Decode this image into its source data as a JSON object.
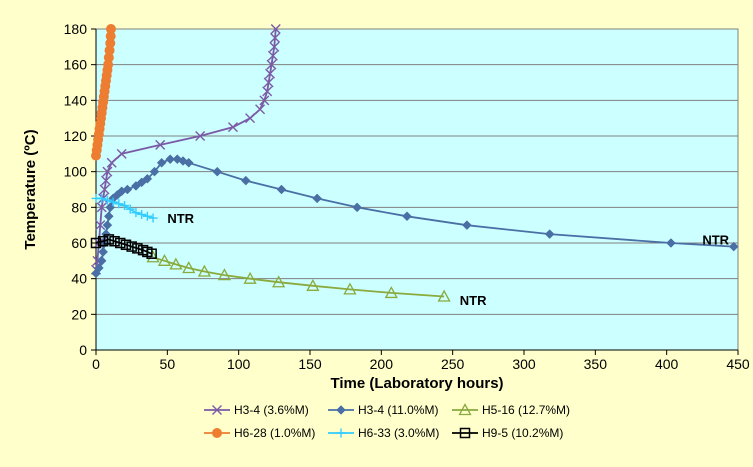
{
  "chart_data": {
    "type": "line",
    "title": "",
    "xlabel": "Time (Laboratory hours)",
    "ylabel": "Temperature (ºC)",
    "xlim": [
      0,
      450
    ],
    "ylim": [
      0,
      180
    ],
    "x_ticks": [
      0,
      50,
      100,
      150,
      200,
      250,
      300,
      350,
      400,
      450
    ],
    "y_ticks": [
      0,
      20,
      40,
      60,
      80,
      100,
      120,
      140,
      160,
      180
    ],
    "grid": "horizontal",
    "plot_background": "#CCFFFF",
    "page_background": "#FFFFCC",
    "legend_position": "bottom",
    "series": [
      {
        "name": "H3-4 (3.6%M)",
        "color": "#7B5AA6",
        "marker": "x",
        "points": [
          [
            0,
            45
          ],
          [
            1,
            50
          ],
          [
            2,
            60
          ],
          [
            3,
            70
          ],
          [
            4,
            80
          ],
          [
            5,
            85
          ],
          [
            6,
            90
          ],
          [
            7,
            95
          ],
          [
            8,
            100
          ],
          [
            11,
            105
          ],
          [
            18,
            110
          ],
          [
            45,
            115
          ],
          [
            73,
            120
          ],
          [
            96,
            125
          ],
          [
            108,
            130
          ],
          [
            115,
            135
          ],
          [
            118,
            140
          ],
          [
            120,
            145
          ],
          [
            121,
            150
          ],
          [
            122,
            155
          ],
          [
            123,
            160
          ],
          [
            124,
            165
          ],
          [
            125,
            170
          ],
          [
            125.5,
            175
          ],
          [
            126,
            180
          ]
        ]
      },
      {
        "name": "H3-4 (11.0%M)",
        "color": "#4A6FA5",
        "marker": "diamond",
        "points": [
          [
            0,
            43
          ],
          [
            2,
            46
          ],
          [
            4,
            50
          ],
          [
            5,
            55
          ],
          [
            6,
            60
          ],
          [
            7,
            65
          ],
          [
            8,
            70
          ],
          [
            9,
            75
          ],
          [
            10,
            80
          ],
          [
            12,
            85
          ],
          [
            15,
            87
          ],
          [
            18,
            89
          ],
          [
            22,
            90
          ],
          [
            28,
            92
          ],
          [
            32,
            94
          ],
          [
            36,
            96
          ],
          [
            41,
            100
          ],
          [
            46,
            105
          ],
          [
            52,
            107
          ],
          [
            57,
            107
          ],
          [
            61,
            106
          ],
          [
            65,
            105
          ],
          [
            85,
            100
          ],
          [
            105,
            95
          ],
          [
            130,
            90
          ],
          [
            155,
            85
          ],
          [
            183,
            80
          ],
          [
            218,
            75
          ],
          [
            260,
            70
          ],
          [
            318,
            65
          ],
          [
            403,
            60
          ],
          [
            447,
            58
          ]
        ]
      },
      {
        "name": "H5-16 (12.7%M)",
        "color": "#8AAA3C",
        "marker": "triangle",
        "points": [
          [
            40,
            52
          ],
          [
            48,
            50
          ],
          [
            56,
            48
          ],
          [
            65,
            46
          ],
          [
            76,
            44
          ],
          [
            90,
            42
          ],
          [
            108,
            40
          ],
          [
            128,
            38
          ],
          [
            152,
            36
          ],
          [
            178,
            34
          ],
          [
            207,
            32
          ],
          [
            244,
            30
          ]
        ]
      },
      {
        "name": "H6-28 (1.0%M)",
        "color": "#ED7D31",
        "marker": "circle",
        "points": [
          [
            0,
            109
          ],
          [
            0.5,
            112
          ],
          [
            1,
            115
          ],
          [
            1.5,
            118
          ],
          [
            2,
            121
          ],
          [
            2.5,
            124
          ],
          [
            3,
            127
          ],
          [
            3.5,
            130
          ],
          [
            4,
            133
          ],
          [
            4.5,
            136
          ],
          [
            5,
            139
          ],
          [
            5.5,
            142
          ],
          [
            6,
            145
          ],
          [
            6.5,
            148
          ],
          [
            7,
            151
          ],
          [
            7.5,
            154
          ],
          [
            8,
            157
          ],
          [
            8.5,
            160
          ],
          [
            9,
            164
          ],
          [
            9.5,
            168
          ],
          [
            10,
            172
          ],
          [
            10.3,
            176
          ],
          [
            10.5,
            180
          ]
        ]
      },
      {
        "name": "H6-33 (3.0%M)",
        "color": "#33CCFF",
        "marker": "plus",
        "points": [
          [
            0,
            85
          ],
          [
            4,
            85
          ],
          [
            8,
            84
          ],
          [
            12,
            83
          ],
          [
            16,
            82
          ],
          [
            20,
            81
          ],
          [
            24,
            79
          ],
          [
            28,
            77
          ],
          [
            32,
            76
          ],
          [
            36,
            75
          ],
          [
            40,
            74
          ]
        ]
      },
      {
        "name": "H9-5 (10.2%M)",
        "color": "#000000",
        "marker": "square",
        "points": [
          [
            0,
            60
          ],
          [
            5,
            61
          ],
          [
            9,
            62
          ],
          [
            13,
            61
          ],
          [
            17,
            60
          ],
          [
            21,
            59
          ],
          [
            25,
            58
          ],
          [
            29,
            57
          ],
          [
            33,
            56
          ],
          [
            36,
            55
          ],
          [
            39,
            54
          ]
        ]
      }
    ],
    "annotations": [
      {
        "text": "NTR",
        "x": 50,
        "y": 74
      },
      {
        "text": "NTR",
        "x": 425,
        "y": 62
      },
      {
        "text": "NTR",
        "x": 255,
        "y": 28
      }
    ]
  }
}
